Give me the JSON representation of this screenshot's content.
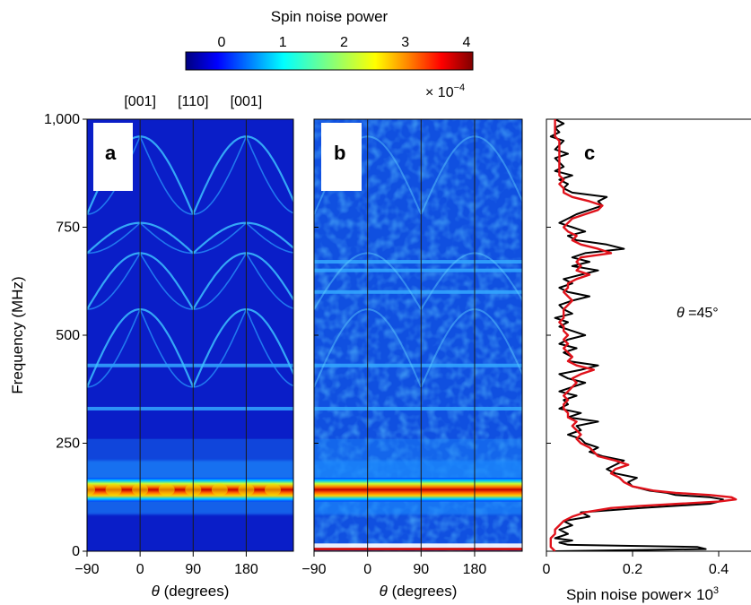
{
  "colorbar": {
    "title": "Spin noise power",
    "ticks": [
      "0",
      "1",
      "2",
      "3",
      "4"
    ],
    "range": [
      0,
      4
    ],
    "multiplier": "× 10",
    "multiplier_exp": "−4",
    "colormap": [
      "#00007f",
      "#0000ff",
      "#007fff",
      "#00ffff",
      "#7fff7f",
      "#ffff00",
      "#ff7f00",
      "#ff0000",
      "#7f0000"
    ]
  },
  "miller_labels": [
    "[001]",
    "[110]",
    "[001]"
  ],
  "y_axis": {
    "label": "Frequency (MHz)",
    "ticks": [
      "0",
      "250",
      "500",
      "750",
      "1,000"
    ],
    "tick_values": [
      0,
      250,
      500,
      750,
      1000
    ],
    "range": [
      0,
      1000
    ]
  },
  "theta_axis": {
    "label_symbol": "θ",
    "label_text": " (degrees)",
    "ticks": [
      "−90",
      "0",
      "90",
      "180"
    ],
    "tick_values": [
      -90,
      0,
      90,
      180
    ],
    "range": [
      -90,
      260
    ]
  },
  "panels": {
    "a": {
      "letter": "a"
    },
    "b": {
      "letter": "b"
    },
    "c": {
      "letter": "c",
      "annotation_symbol": "θ",
      "annotation_text": " =45°"
    }
  },
  "chart_data": [
    {
      "type": "heatmap",
      "panel": "a",
      "description_source": "calculated spin noise map",
      "x_range": [
        -90,
        260
      ],
      "y_range": [
        0,
        1000
      ],
      "z_range": [
        0,
        4
      ],
      "vertical_lines_at": [
        0,
        90,
        180
      ],
      "features": {
        "strong_band_MHz": [
          115,
          170
        ],
        "horizontal_bands_MHz": [
          330,
          430
        ],
        "arcs_MHz": [
          [
            380,
            560
          ],
          [
            560,
            690
          ],
          [
            690,
            760
          ],
          [
            780,
            960
          ]
        ]
      }
    },
    {
      "type": "heatmap",
      "panel": "b",
      "description_source": "measured spin noise map",
      "x_range": [
        -90,
        260
      ],
      "y_range": [
        0,
        1000
      ],
      "z_range": [
        0,
        4
      ],
      "vertical_lines_at": [
        0,
        90,
        180
      ],
      "features": {
        "strong_band_MHz": [
          115,
          170
        ],
        "horizontal_bands_MHz": [
          330,
          430,
          600,
          650,
          670
        ]
      }
    },
    {
      "type": "line",
      "panel": "c",
      "xlabel": "Spin noise power× 10",
      "xlabel_exp": "3",
      "x_ticks": [
        "0",
        "0.2",
        "0.4"
      ],
      "x_tick_values": [
        0,
        0.2,
        0.4
      ],
      "xlim": [
        0,
        0.5
      ],
      "ylim": [
        0,
        1000
      ],
      "series": [
        {
          "color": "#000000",
          "y": [
            0,
            5,
            10,
            15,
            20,
            25,
            30,
            40,
            50,
            60,
            70,
            80,
            90,
            100,
            105,
            110,
            115,
            120,
            125,
            130,
            135,
            140,
            150,
            160,
            170,
            180,
            190,
            200,
            210,
            220,
            230,
            240,
            250,
            260,
            270,
            280,
            290,
            300,
            310,
            320,
            330,
            340,
            350,
            360,
            370,
            380,
            390,
            400,
            410,
            420,
            430,
            440,
            450,
            460,
            470,
            480,
            490,
            500,
            510,
            520,
            530,
            540,
            550,
            560,
            570,
            580,
            590,
            600,
            610,
            620,
            630,
            640,
            650,
            660,
            670,
            680,
            690,
            700,
            710,
            720,
            730,
            740,
            750,
            760,
            770,
            780,
            790,
            800,
            810,
            820,
            830,
            840,
            850,
            860,
            870,
            880,
            890,
            900,
            910,
            920,
            930,
            940,
            950,
            960,
            970,
            980,
            990,
            1000
          ],
          "x": [
            0.02,
            0.37,
            0.35,
            0.05,
            0.03,
            0.06,
            0.02,
            0.05,
            0.03,
            0.06,
            0.04,
            0.1,
            0.08,
            0.22,
            0.3,
            0.38,
            0.4,
            0.41,
            0.38,
            0.3,
            0.28,
            0.24,
            0.2,
            0.19,
            0.21,
            0.16,
            0.14,
            0.16,
            0.18,
            0.13,
            0.1,
            0.12,
            0.09,
            0.08,
            0.05,
            0.08,
            0.07,
            0.12,
            0.05,
            0.08,
            0.03,
            0.05,
            0.04,
            0.07,
            0.03,
            0.06,
            0.09,
            0.05,
            0.03,
            0.08,
            0.12,
            0.05,
            0.06,
            0.04,
            0.07,
            0.03,
            0.05,
            0.09,
            0.06,
            0.03,
            0.05,
            0.02,
            0.06,
            0.04,
            0.03,
            0.06,
            0.1,
            0.05,
            0.03,
            0.06,
            0.04,
            0.08,
            0.12,
            0.06,
            0.1,
            0.06,
            0.09,
            0.18,
            0.14,
            0.07,
            0.05,
            0.09,
            0.06,
            0.03,
            0.05,
            0.07,
            0.1,
            0.13,
            0.12,
            0.14,
            0.06,
            0.04,
            0.05,
            0.03,
            0.06,
            0.02,
            0.04,
            0.03,
            0.02,
            0.05,
            0.02,
            0.03,
            0.04,
            0.01,
            0.03,
            0.02,
            0.04,
            0.02
          ]
        },
        {
          "color": "#e0121b",
          "y": [
            0,
            10,
            20,
            30,
            40,
            50,
            60,
            70,
            80,
            90,
            100,
            105,
            110,
            115,
            120,
            125,
            130,
            135,
            140,
            150,
            160,
            170,
            180,
            190,
            200,
            210,
            220,
            230,
            240,
            250,
            260,
            270,
            280,
            290,
            300,
            310,
            320,
            330,
            340,
            350,
            360,
            370,
            380,
            390,
            400,
            410,
            420,
            430,
            440,
            450,
            460,
            470,
            480,
            490,
            500,
            510,
            520,
            530,
            540,
            550,
            560,
            570,
            580,
            590,
            600,
            610,
            620,
            630,
            640,
            650,
            660,
            670,
            680,
            690,
            700,
            710,
            720,
            730,
            740,
            750,
            760,
            770,
            780,
            790,
            800,
            810,
            820,
            830,
            840,
            850,
            860,
            870,
            880,
            890,
            900,
            910,
            920,
            930,
            940,
            950,
            960,
            970,
            980,
            990,
            1000
          ],
          "x": [
            0.02,
            0.01,
            0.01,
            0.01,
            0.02,
            0.02,
            0.03,
            0.04,
            0.06,
            0.09,
            0.15,
            0.22,
            0.31,
            0.4,
            0.44,
            0.43,
            0.38,
            0.3,
            0.25,
            0.2,
            0.18,
            0.17,
            0.15,
            0.16,
            0.19,
            0.16,
            0.12,
            0.11,
            0.1,
            0.08,
            0.07,
            0.08,
            0.07,
            0.06,
            0.07,
            0.05,
            0.05,
            0.04,
            0.04,
            0.05,
            0.04,
            0.05,
            0.06,
            0.07,
            0.06,
            0.08,
            0.11,
            0.07,
            0.05,
            0.06,
            0.05,
            0.04,
            0.05,
            0.04,
            0.05,
            0.04,
            0.04,
            0.03,
            0.04,
            0.04,
            0.04,
            0.05,
            0.06,
            0.05,
            0.04,
            0.05,
            0.05,
            0.07,
            0.1,
            0.07,
            0.08,
            0.07,
            0.08,
            0.15,
            0.12,
            0.08,
            0.06,
            0.07,
            0.05,
            0.04,
            0.05,
            0.06,
            0.09,
            0.12,
            0.13,
            0.1,
            0.06,
            0.04,
            0.04,
            0.03,
            0.04,
            0.03,
            0.03,
            0.03,
            0.03,
            0.03,
            0.03,
            0.03,
            0.03,
            0.03,
            0.02,
            0.02,
            0.02,
            0.02,
            0.02
          ]
        }
      ]
    }
  ]
}
